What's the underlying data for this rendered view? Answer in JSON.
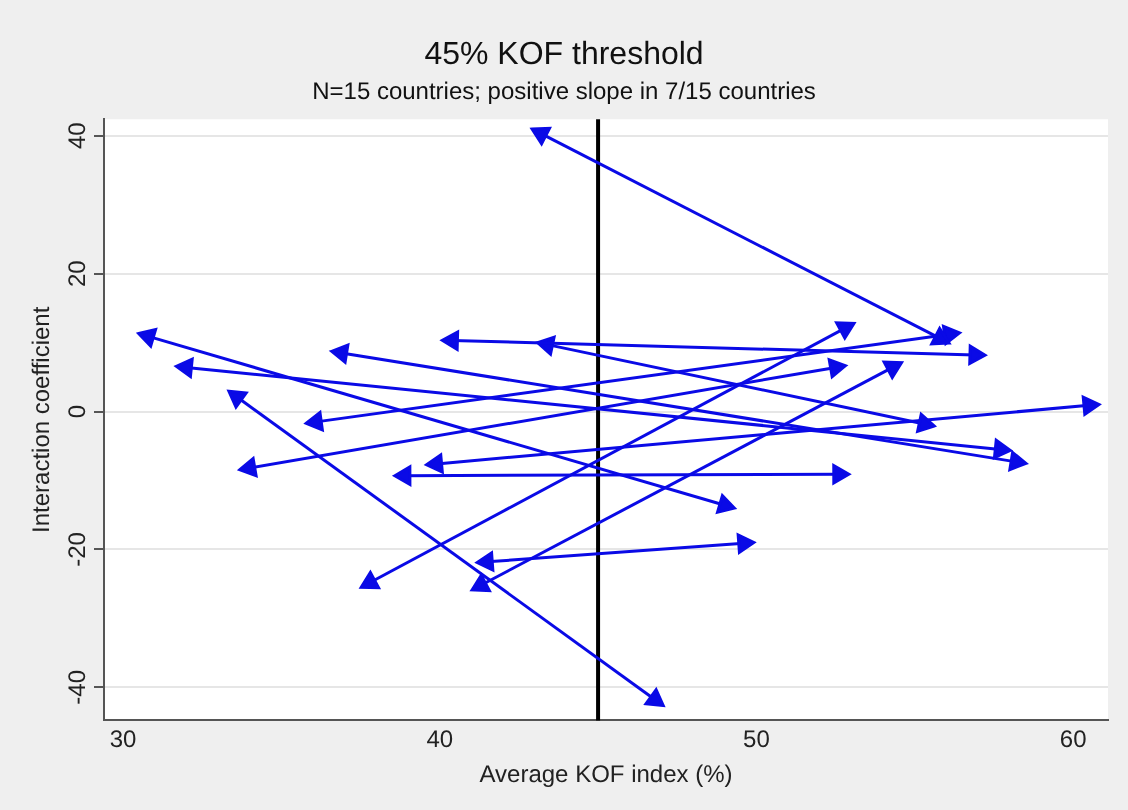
{
  "chart_data": {
    "type": "line",
    "title": "45% KOF threshold",
    "subtitle": "N=15 countries; positive slope in 7/15 countries",
    "xlabel": "Average KOF index (%)",
    "ylabel": "Interaction coefficient",
    "xlim": [
      29.4,
      61.1
    ],
    "xticks": [
      30,
      40,
      50,
      60
    ],
    "ylim": [
      -44.8,
      42.4
    ],
    "yticks": [
      -40,
      -20,
      0,
      20,
      40
    ],
    "grid": "y",
    "legend": false,
    "marker": "triangle",
    "ref_lines": [
      {
        "axis": "x",
        "value": 45,
        "color": "#000000"
      }
    ],
    "series": [
      {
        "color": "#0a0ae6",
        "x": [
          43.2,
          55.8
        ],
        "values": [
          40.3,
          10.6
        ]
      },
      {
        "color": "#0a0ae6",
        "x": [
          30.8,
          49.0
        ],
        "values": [
          10.9,
          -13.6
        ]
      },
      {
        "color": "#0a0ae6",
        "x": [
          32.0,
          57.7
        ],
        "values": [
          6.4,
          -5.5
        ]
      },
      {
        "color": "#0a0ae6",
        "x": [
          33.6,
          46.8
        ],
        "values": [
          2.1,
          -41.8
        ]
      },
      {
        "color": "#0a0ae6",
        "x": [
          40.4,
          56.9
        ],
        "values": [
          10.3,
          8.2
        ]
      },
      {
        "color": "#0a0ae6",
        "x": [
          43.4,
          55.3
        ],
        "values": [
          9.7,
          -1.8
        ]
      },
      {
        "color": "#0a0ae6",
        "x": [
          36.9,
          58.2
        ],
        "values": [
          8.5,
          -7.3
        ]
      },
      {
        "color": "#0a0ae6",
        "x": [
          36.1,
          56.1
        ],
        "values": [
          -1.5,
          11.2
        ]
      },
      {
        "color": "#0a0ae6",
        "x": [
          34.0,
          52.5
        ],
        "values": [
          -8.2,
          6.4
        ]
      },
      {
        "color": "#0a0ae6",
        "x": [
          38.9,
          52.6
        ],
        "values": [
          -9.3,
          -9.1
        ]
      },
      {
        "color": "#0a0ae6",
        "x": [
          39.9,
          60.5
        ],
        "values": [
          -7.6,
          0.9
        ]
      },
      {
        "color": "#0a0ae6",
        "x": [
          37.8,
          52.8
        ],
        "values": [
          -24.8,
          12.1
        ]
      },
      {
        "color": "#0a0ae6",
        "x": [
          41.3,
          54.3
        ],
        "values": [
          -25.2,
          6.4
        ]
      },
      {
        "color": "#0a0ae6",
        "x": [
          41.5,
          49.6
        ],
        "values": [
          -21.8,
          -19.1
        ]
      }
    ]
  }
}
